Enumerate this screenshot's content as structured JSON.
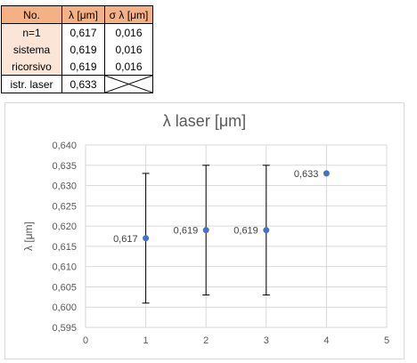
{
  "table": {
    "headers": [
      "No.",
      "λ [μm]",
      "σ λ [μm]"
    ],
    "rows": [
      {
        "label": "n=1",
        "value": "0,617",
        "sigma": "0,016"
      },
      {
        "label": "sistema",
        "value": "0,619",
        "sigma": "0,016"
      },
      {
        "label": "ricorsivo",
        "value": "0,619",
        "sigma": "0,016"
      }
    ],
    "last_row": {
      "label": "istr. laser",
      "value": "0,633"
    }
  },
  "chart_data": {
    "type": "scatter",
    "title": "λ laser [μm]",
    "xlabel": "",
    "ylabel": "λ [μm]",
    "xlim": [
      0,
      5
    ],
    "ylim": [
      0.595,
      0.64
    ],
    "xticks": [
      "0",
      "1",
      "2",
      "3",
      "4",
      "5"
    ],
    "yticks": [
      "0,595",
      "0,600",
      "0,605",
      "0,610",
      "0,615",
      "0,620",
      "0,625",
      "0,630",
      "0,635",
      "0,640"
    ],
    "grid": "vertical-and-horizontal",
    "points": [
      {
        "x": 1,
        "y": 0.617,
        "error": 0.016,
        "label": "0,617"
      },
      {
        "x": 2,
        "y": 0.619,
        "error": 0.016,
        "label": "0,619"
      },
      {
        "x": 3,
        "y": 0.619,
        "error": 0.016,
        "label": "0,619"
      },
      {
        "x": 4,
        "y": 0.633,
        "label": "0,633"
      }
    ],
    "colors": {
      "marker": "#4472c4",
      "errorbar": "#000000",
      "grid": "#d9d9d9",
      "text": "#595959"
    }
  }
}
